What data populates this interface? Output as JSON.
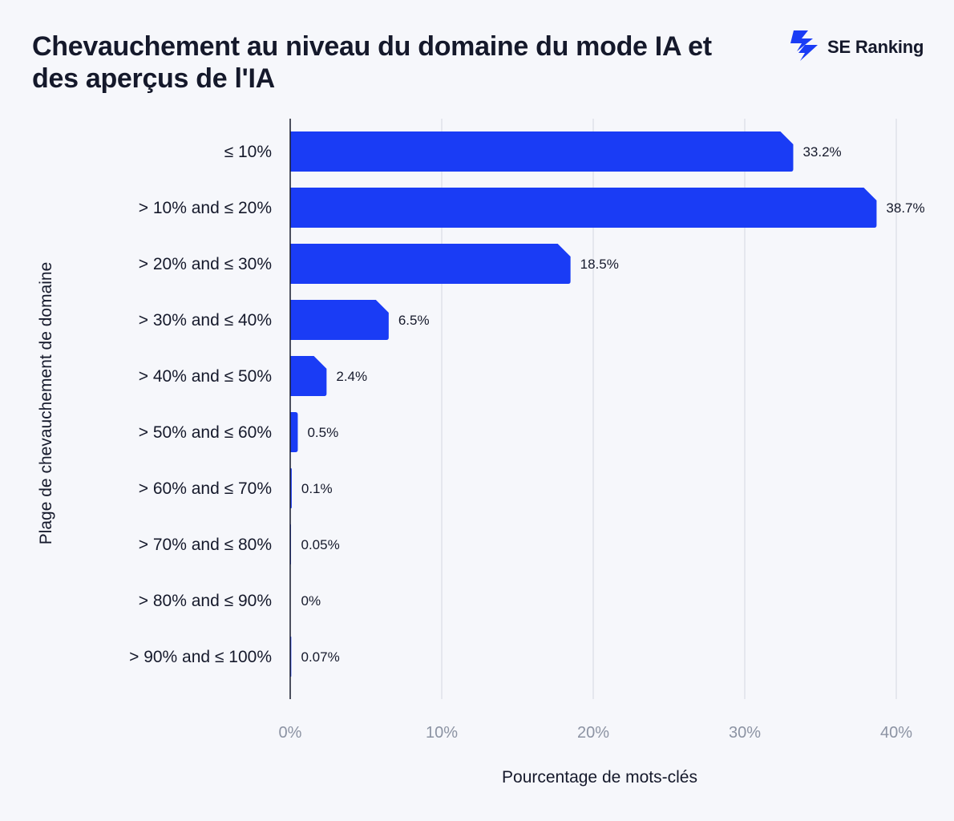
{
  "header": {
    "title": "Chevauchement au niveau du domaine du mode IA et des aperçus de l'IA",
    "brand": "SE Ranking",
    "brand_icon": "se-ranking-logo-icon"
  },
  "colors": {
    "bar": "#1a3cf5",
    "background": "#f6f7fb",
    "grid": "#dfe2ea",
    "axis": "#15192b",
    "tick_text": "#8c93a3"
  },
  "chart_data": {
    "type": "bar",
    "orientation": "horizontal",
    "categories": [
      "≤ 10%",
      "> 10% and ≤ 20%",
      "> 20% and ≤ 30%",
      "> 30% and ≤ 40%",
      "> 40% and ≤ 50%",
      "> 50% and ≤ 60%",
      "> 60% and ≤ 70%",
      "> 70% and ≤ 80%",
      "> 80% and ≤ 90%",
      "> 90% and ≤ 100%"
    ],
    "values": [
      33.2,
      38.7,
      18.5,
      6.5,
      2.4,
      0.5,
      0.1,
      0.05,
      0,
      0.07
    ],
    "value_labels": [
      "33.2%",
      "38.7%",
      "18.5%",
      "6.5%",
      "2.4%",
      "0.5%",
      "0.1%",
      "0.05%",
      "0%",
      "0.07%"
    ],
    "xlabel": "Pourcentage de mots-clés",
    "ylabel": "Plage de chevauchement de domaine",
    "xlim": [
      0,
      40
    ],
    "xticks": [
      0,
      10,
      20,
      30,
      40
    ],
    "xtick_labels": [
      "0%",
      "10%",
      "20%",
      "30%",
      "40%"
    ],
    "grid": true
  }
}
